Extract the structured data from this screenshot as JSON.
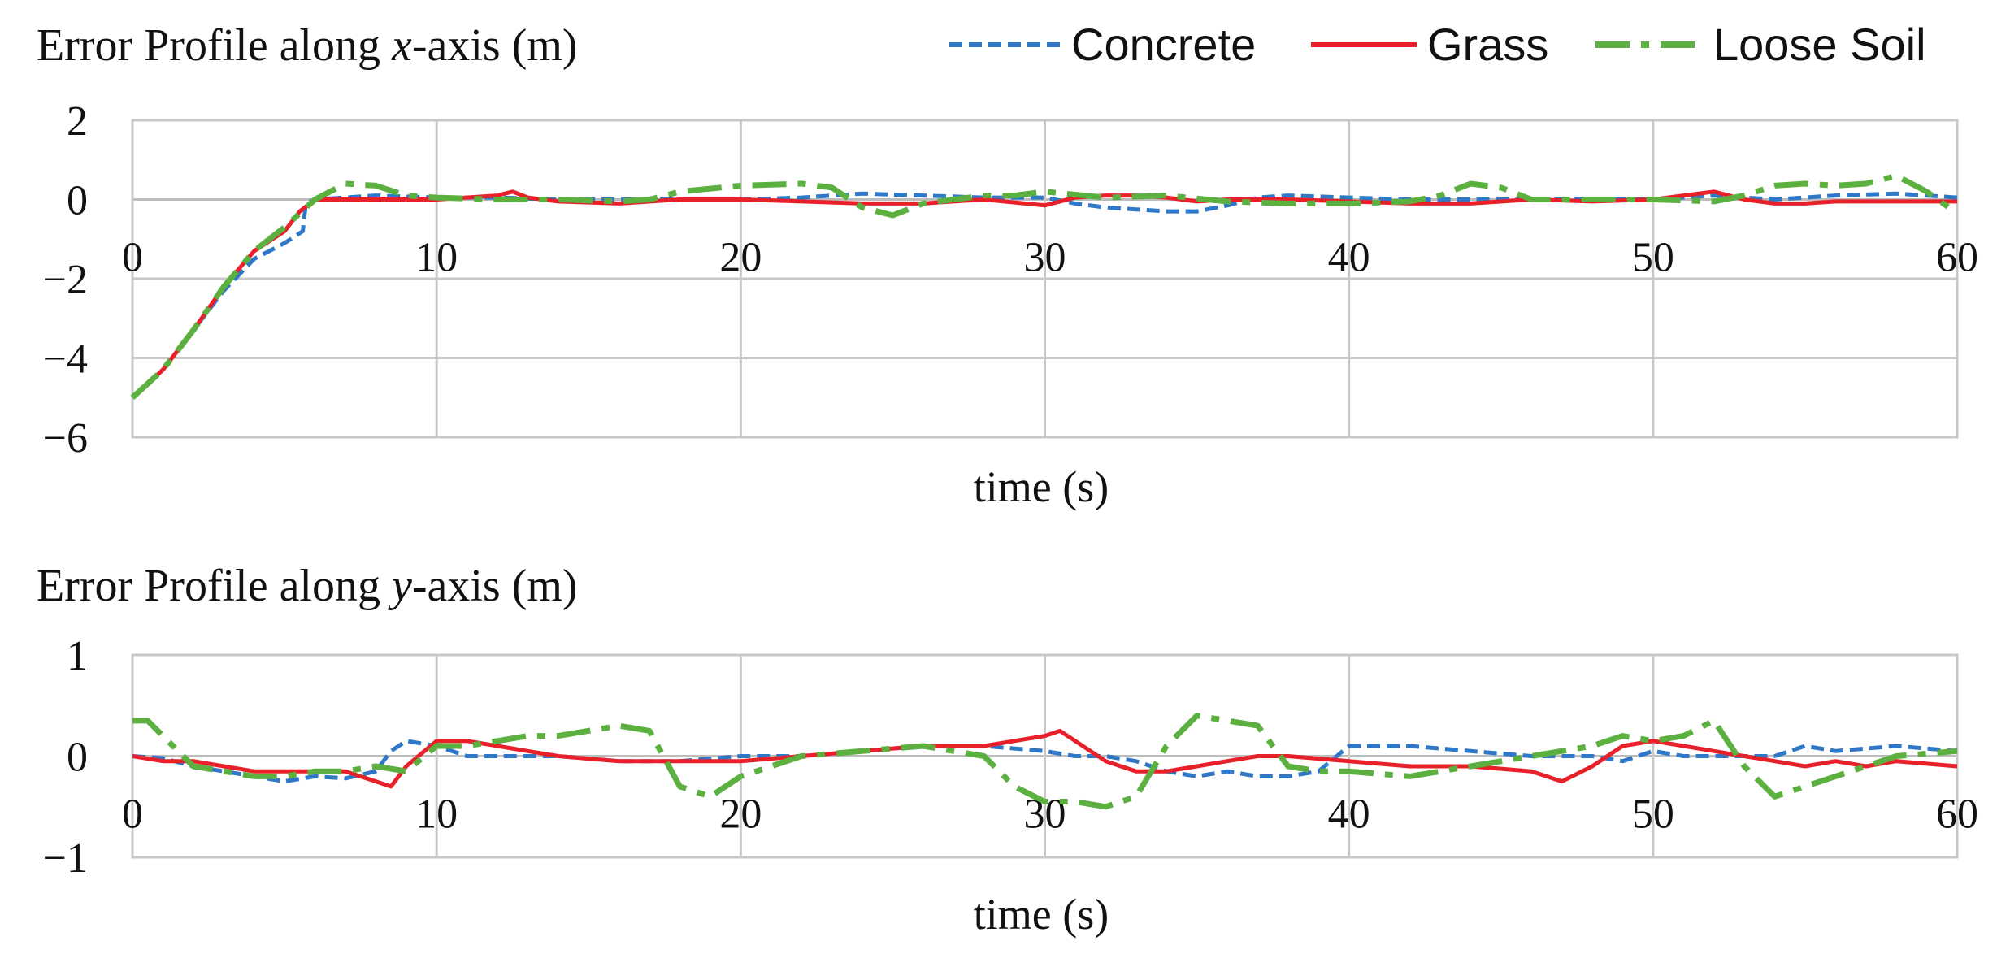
{
  "legend": {
    "items": [
      {
        "label": "Concrete",
        "color": "#2f78c8",
        "dash": "dashed"
      },
      {
        "label": "Grass",
        "color": "#e8202a",
        "dash": "solid"
      },
      {
        "label": "Loose Soil",
        "color": "#5cb040",
        "dash": "dashdot"
      }
    ]
  },
  "chart_data": [
    {
      "type": "line",
      "title_pre": "Error Profile along ",
      "title_var": "x",
      "title_post": "-axis (m)",
      "xlabel": "time (s)",
      "ylabel": "",
      "xlim": [
        0,
        60
      ],
      "ylim": [
        -6,
        2
      ],
      "xticks": [
        0,
        10,
        20,
        30,
        40,
        50,
        60
      ],
      "yticks": [
        2,
        0,
        -2,
        -4,
        -6
      ],
      "ytick_labels": [
        "2",
        "0",
        "−2",
        "−4",
        "−6"
      ],
      "series": [
        {
          "name": "Concrete",
          "x": [
            0,
            1,
            2,
            3,
            4,
            5,
            5.6,
            5.7,
            6,
            8,
            10,
            12,
            14,
            16,
            18,
            20,
            22,
            24,
            26,
            28,
            30,
            31,
            32,
            33,
            34,
            35,
            36,
            37,
            38,
            40,
            42,
            44,
            46,
            48,
            50,
            52,
            54,
            56,
            58,
            60
          ],
          "y": [
            -5,
            -4.3,
            -3.3,
            -2.3,
            -1.5,
            -1.1,
            -0.8,
            -0.1,
            0,
            0.1,
            0.05,
            0.05,
            0,
            0,
            0,
            0,
            0.05,
            0.15,
            0.1,
            0.05,
            0.05,
            -0.1,
            -0.2,
            -0.25,
            -0.3,
            -0.3,
            -0.15,
            0.05,
            0.1,
            0.05,
            0,
            0,
            0,
            0,
            0,
            0.1,
            0,
            0.1,
            0.15,
            0.05
          ]
        },
        {
          "name": "Grass",
          "x": [
            0,
            1,
            2,
            3,
            4,
            5,
            5.5,
            6,
            8,
            10,
            12,
            12.5,
            13,
            14,
            16,
            18,
            20,
            22,
            24,
            26,
            28,
            30,
            31,
            32,
            33,
            34,
            35,
            36,
            38,
            40,
            42,
            44,
            46,
            48,
            50,
            51,
            52,
            53,
            54,
            55,
            56,
            58,
            60
          ],
          "y": [
            -5,
            -4.3,
            -3.3,
            -2.2,
            -1.3,
            -0.8,
            -0.3,
            0,
            0,
            0,
            0.1,
            0.2,
            0.05,
            -0.05,
            -0.1,
            0,
            0,
            -0.05,
            -0.1,
            -0.1,
            0,
            -0.15,
            0.05,
            0.1,
            0.1,
            0.05,
            -0.05,
            0,
            0,
            -0.05,
            -0.1,
            -0.1,
            0,
            -0.05,
            0,
            0.1,
            0.2,
            0,
            -0.1,
            -0.1,
            -0.05,
            -0.05,
            -0.05
          ]
        },
        {
          "name": "Loose Soil",
          "x": [
            0,
            1,
            2,
            3,
            4,
            5,
            6,
            7,
            8,
            9,
            10,
            12,
            14,
            16,
            17,
            18,
            20,
            22,
            23,
            24,
            25,
            26,
            27,
            28,
            29,
            30,
            32,
            34,
            36,
            38,
            40,
            42,
            43,
            44,
            45,
            46,
            48,
            50,
            52,
            53,
            54,
            55,
            56,
            57,
            58,
            59,
            60
          ],
          "y": [
            -5,
            -4.3,
            -3.3,
            -2.2,
            -1.3,
            -0.7,
            0,
            0.4,
            0.35,
            0.1,
            0.05,
            0,
            0,
            -0.05,
            0,
            0.2,
            0.35,
            0.4,
            0.3,
            -0.2,
            -0.4,
            -0.1,
            0,
            0.1,
            0.1,
            0.2,
            0.05,
            0.1,
            -0.05,
            -0.1,
            -0.1,
            -0.05,
            0.1,
            0.4,
            0.3,
            0,
            0,
            0,
            -0.05,
            0.1,
            0.35,
            0.4,
            0.35,
            0.4,
            0.6,
            0.2,
            -0.35
          ]
        }
      ]
    },
    {
      "type": "line",
      "title_pre": "Error Profile along ",
      "title_var": "y",
      "title_post": "-axis (m)",
      "xlabel": "time (s)",
      "ylabel": "",
      "xlim": [
        0,
        60
      ],
      "ylim": [
        -1,
        1
      ],
      "xticks": [
        0,
        10,
        20,
        30,
        40,
        50,
        60
      ],
      "yticks": [
        1,
        0,
        -1
      ],
      "ytick_labels": [
        "1",
        "0",
        "−1"
      ],
      "series": [
        {
          "name": "Concrete",
          "x": [
            0,
            1,
            2,
            3,
            4,
            5,
            6,
            7,
            8,
            8.5,
            9,
            10,
            11,
            12,
            14,
            16,
            18,
            20,
            22,
            24,
            26,
            28,
            30,
            31,
            32,
            33,
            34,
            35,
            36,
            37,
            38,
            39,
            40,
            42,
            44,
            46,
            48,
            49,
            50,
            51,
            52,
            54,
            55,
            56,
            58,
            60
          ],
          "y": [
            0,
            -0.02,
            -0.1,
            -0.15,
            -0.2,
            -0.25,
            -0.2,
            -0.22,
            -0.15,
            0.05,
            0.15,
            0.1,
            0,
            0,
            0,
            -0.05,
            -0.05,
            0,
            0,
            0.05,
            0.1,
            0.1,
            0.05,
            0,
            0,
            -0.05,
            -0.15,
            -0.2,
            -0.15,
            -0.2,
            -0.2,
            -0.15,
            0.1,
            0.1,
            0.05,
            0,
            0,
            -0.05,
            0.05,
            0,
            0,
            0,
            0.1,
            0.05,
            0.1,
            0.05
          ]
        },
        {
          "name": "Grass",
          "x": [
            0,
            1,
            2,
            3,
            4,
            5,
            6,
            7,
            8,
            8.5,
            9,
            10,
            11,
            12,
            13,
            14,
            16,
            18,
            20,
            22,
            24,
            26,
            28,
            29,
            30,
            30.5,
            31,
            32,
            33,
            34,
            35,
            36,
            37,
            38,
            40,
            42,
            44,
            46,
            47,
            48,
            49,
            50,
            51,
            52,
            54,
            55,
            56,
            57,
            58,
            60
          ],
          "y": [
            0,
            -0.05,
            -0.05,
            -0.1,
            -0.15,
            -0.15,
            -0.15,
            -0.15,
            -0.25,
            -0.3,
            -0.1,
            0.15,
            0.15,
            0.1,
            0.05,
            0,
            -0.05,
            -0.05,
            -0.05,
            0,
            0.05,
            0.1,
            0.1,
            0.15,
            0.2,
            0.25,
            0.15,
            -0.05,
            -0.15,
            -0.15,
            -0.1,
            -0.05,
            0,
            0,
            -0.05,
            -0.1,
            -0.1,
            -0.15,
            -0.25,
            -0.1,
            0.1,
            0.15,
            0.1,
            0.05,
            -0.05,
            -0.1,
            -0.05,
            -0.1,
            -0.05,
            -0.1
          ]
        },
        {
          "name": "Loose Soil",
          "x": [
            0,
            0.5,
            1,
            2,
            3,
            4,
            5,
            6,
            7,
            8,
            9,
            10,
            11,
            12,
            13,
            14,
            16,
            17,
            18,
            19,
            20,
            21,
            22,
            24,
            26,
            27,
            28,
            29,
            30,
            31,
            32,
            33,
            34,
            35,
            36,
            37,
            38,
            39,
            40,
            42,
            44,
            46,
            48,
            49,
            50,
            51,
            52,
            53,
            54,
            55,
            56,
            57,
            58,
            60
          ],
          "y": [
            0.35,
            0.35,
            0.2,
            -0.1,
            -0.15,
            -0.2,
            -0.2,
            -0.15,
            -0.15,
            -0.1,
            -0.15,
            0.1,
            0.1,
            0.15,
            0.2,
            0.2,
            0.3,
            0.25,
            -0.3,
            -0.4,
            -0.2,
            -0.1,
            0,
            0.05,
            0.1,
            0.05,
            0,
            -0.3,
            -0.45,
            -0.45,
            -0.5,
            -0.4,
            0.1,
            0.4,
            0.35,
            0.3,
            -0.1,
            -0.15,
            -0.15,
            -0.2,
            -0.1,
            0,
            0.1,
            0.2,
            0.15,
            0.2,
            0.35,
            -0.1,
            -0.4,
            -0.3,
            -0.2,
            -0.1,
            0,
            0.05
          ]
        }
      ]
    }
  ]
}
